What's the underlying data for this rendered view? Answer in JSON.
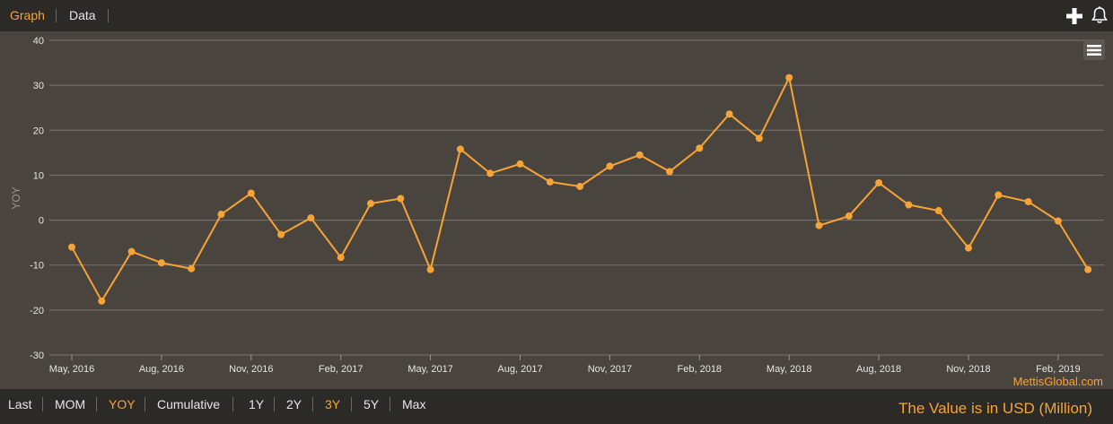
{
  "tabs": [
    {
      "label": "Graph",
      "active": true
    },
    {
      "label": "Data",
      "active": false
    }
  ],
  "icons": {
    "add": "plus-icon",
    "alert": "bell-icon",
    "menu": "hamburger-menu-icon"
  },
  "ranges": [
    {
      "label": "Last",
      "active": false
    },
    {
      "label": "MOM",
      "active": false
    },
    {
      "label": "YOY",
      "active": true
    },
    {
      "label": "Cumulative",
      "active": false
    },
    {
      "label": "1Y",
      "active": false
    },
    {
      "label": "2Y",
      "active": false
    },
    {
      "label": "3Y",
      "active": true
    },
    {
      "label": "5Y",
      "active": false
    },
    {
      "label": "Max",
      "active": false
    }
  ],
  "value_note": "The Value is in USD (Million)",
  "credit": "MettisGlobal.com",
  "colors": {
    "accent": "#f7a335",
    "plot_bg": "#4a443e",
    "bar_bg": "#2b2a27"
  },
  "chart_data": {
    "type": "line",
    "title": "",
    "xlabel": "",
    "ylabel": "YOY",
    "ylim": [
      -30,
      40
    ],
    "yticks": [
      -30,
      -20,
      -10,
      0,
      10,
      20,
      30,
      40
    ],
    "xtick_labels": [
      "May, 2016",
      "Aug, 2016",
      "Nov, 2016",
      "Feb, 2017",
      "May, 2017",
      "Aug, 2017",
      "Nov, 2017",
      "Feb, 2018",
      "May, 2018",
      "Aug, 2018",
      "Nov, 2018",
      "Feb, 2019"
    ],
    "grid": true,
    "legend": "none",
    "x": [
      "May, 2016",
      "Jun, 2016",
      "Jul, 2016",
      "Aug, 2016",
      "Sep, 2016",
      "Oct, 2016",
      "Nov, 2016",
      "Dec, 2016",
      "Jan, 2017",
      "Feb, 2017",
      "Mar, 2017",
      "Apr, 2017",
      "May, 2017",
      "Jun, 2017",
      "Jul, 2017",
      "Aug, 2017",
      "Sep, 2017",
      "Oct, 2017",
      "Nov, 2017",
      "Dec, 2017",
      "Jan, 2018",
      "Feb, 2018",
      "Mar, 2018",
      "Apr, 2018",
      "May, 2018",
      "Jun, 2018",
      "Jul, 2018",
      "Aug, 2018",
      "Sep, 2018",
      "Oct, 2018",
      "Nov, 2018",
      "Dec, 2018",
      "Jan, 2019",
      "Feb, 2019",
      "Mar, 2019"
    ],
    "series": [
      {
        "values": [
          -6,
          -18,
          -7,
          -9.5,
          -10.8,
          1.3,
          6,
          -3.2,
          0.5,
          -8.3,
          3.7,
          4.8,
          -11,
          15.8,
          10.4,
          12.5,
          8.5,
          7.5,
          12,
          14.5,
          10.8,
          16,
          23.6,
          18.2,
          31.7,
          -1.2,
          0.9,
          8.3,
          3.4,
          2.1,
          -6.2,
          5.6,
          4.1,
          -0.2,
          -11
        ]
      }
    ]
  }
}
